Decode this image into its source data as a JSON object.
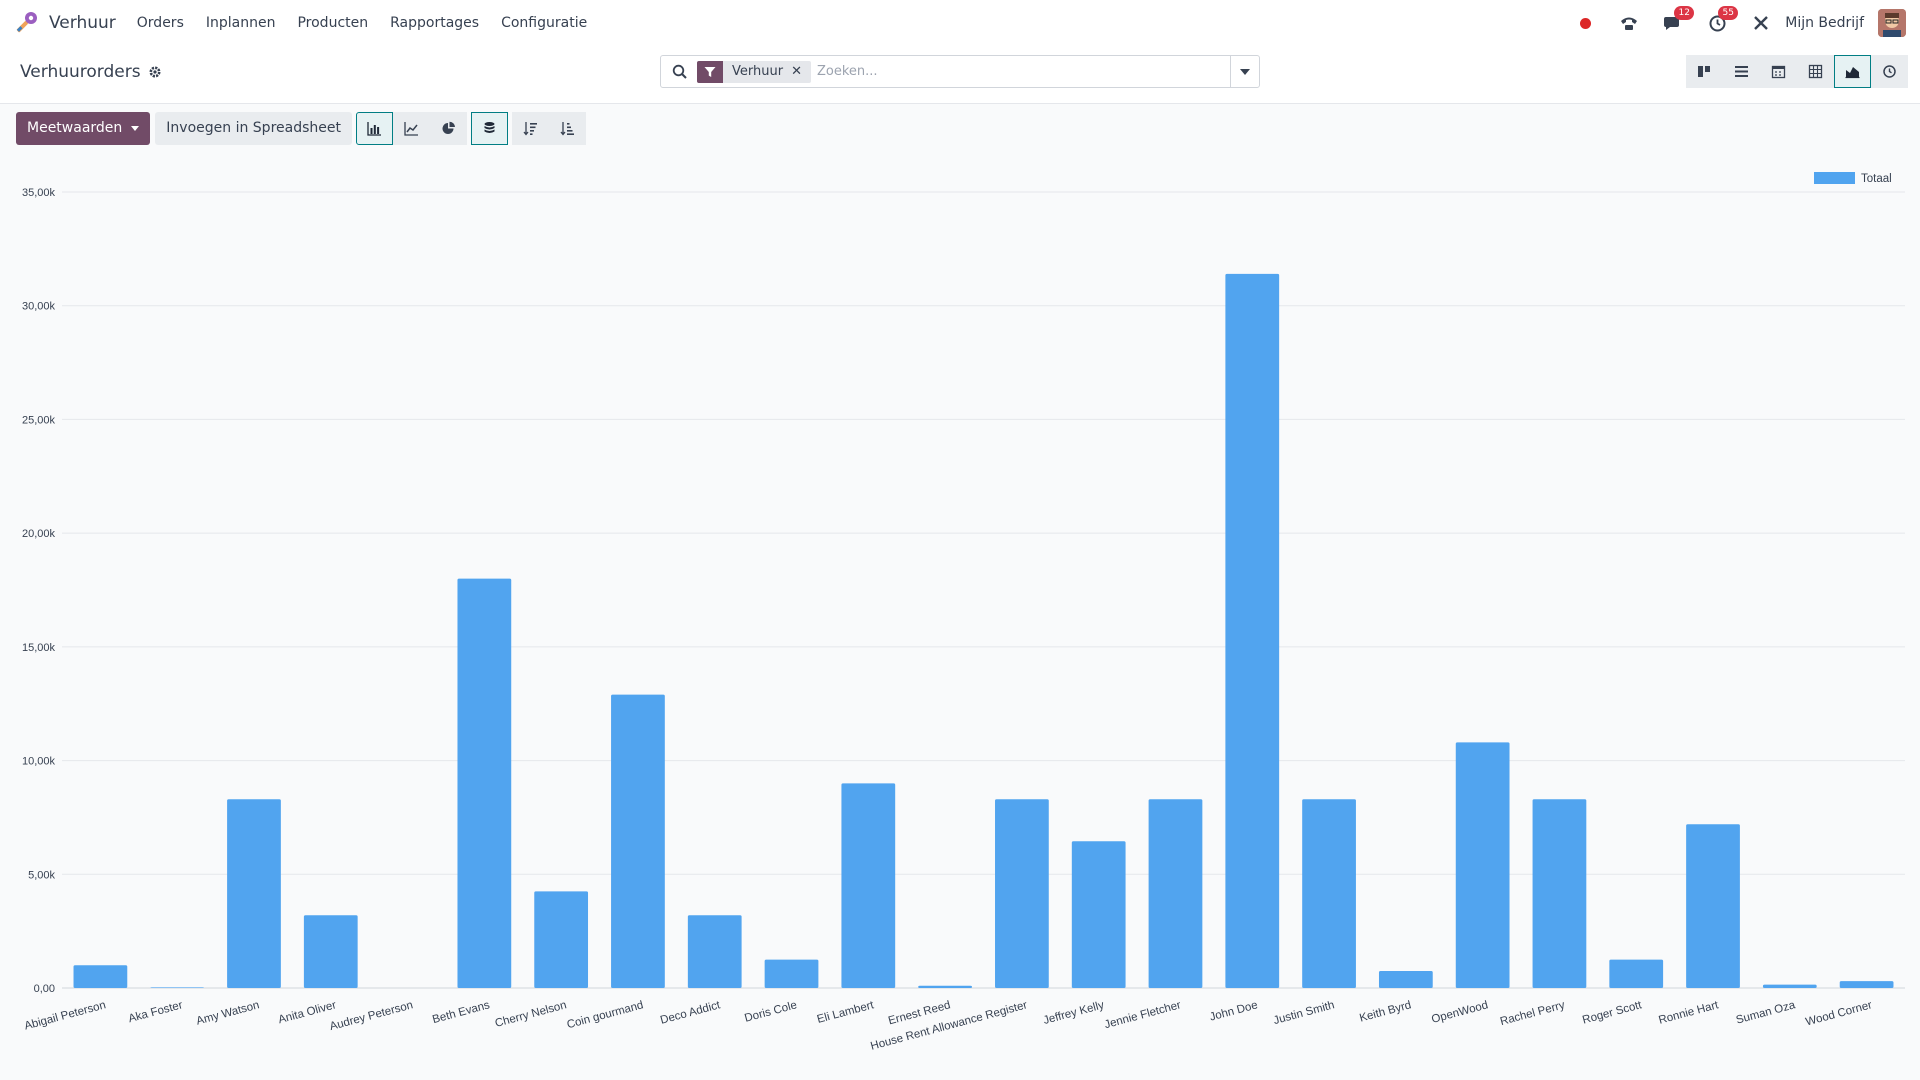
{
  "navbar": {
    "app_name": "Verhuur",
    "menu": [
      "Orders",
      "Inplannen",
      "Producten",
      "Rapportages",
      "Configuratie"
    ],
    "chat_badge": "12",
    "activity_badge": "55",
    "company": "Mijn Bedrijf"
  },
  "control_panel": {
    "title": "Verhuurorders",
    "search": {
      "facet_label": "Verhuur",
      "facet_remove": "✕",
      "placeholder": "Zoeken..."
    }
  },
  "toolbar": {
    "measures_label": "Meetwaarden",
    "spreadsheet_label": "Invoegen in Spreadsheet"
  },
  "colors": {
    "bar": "#51a4ef",
    "brand": "#714b67",
    "active_border": "#017e84"
  },
  "icons": {
    "views": [
      "kanban-icon",
      "list-icon",
      "calendar-icon",
      "pivot-icon",
      "graph-icon",
      "activity-icon"
    ],
    "chart_tools": [
      "bar-chart-icon",
      "line-chart-icon",
      "pie-chart-icon",
      "stacked-icon",
      "sort-desc-icon",
      "sort-asc-icon"
    ]
  },
  "chart_data": {
    "type": "bar",
    "categories": [
      "Abigail Peterson",
      "Aka Foster",
      "Amy Watson",
      "Anita Oliver",
      "Audrey Peterson",
      "Beth Evans",
      "Cherry Nelson",
      "Coin gourmand",
      "Deco Addict",
      "Doris Cole",
      "Eli Lambert",
      "Ernest Reed",
      "House Rent Allowance Register",
      "Jeffrey Kelly",
      "Jennie Fletcher",
      "John Doe",
      "Justin Smith",
      "Keith Byrd",
      "OpenWood",
      "Rachel Perry",
      "Roger Scott",
      "Ronnie Hart",
      "Suman Oza",
      "Wood Corner"
    ],
    "series": [
      {
        "name": "Totaal",
        "values": [
          1000,
          30,
          8300,
          3200,
          0,
          18000,
          4250,
          12900,
          3200,
          1250,
          9000,
          100,
          8300,
          6450,
          8300,
          31400,
          8300,
          750,
          10800,
          8300,
          1250,
          7200,
          150,
          300
        ]
      }
    ],
    "ylim": [
      0,
      35000
    ],
    "y_ticks": [
      0,
      5000,
      10000,
      15000,
      20000,
      25000,
      30000,
      35000
    ],
    "y_tick_labels": [
      "0,00",
      "5,00k",
      "10,00k",
      "15,00k",
      "20,00k",
      "25,00k",
      "30,00k",
      "35,00k"
    ],
    "legend_position": "top-right",
    "grid": true
  }
}
